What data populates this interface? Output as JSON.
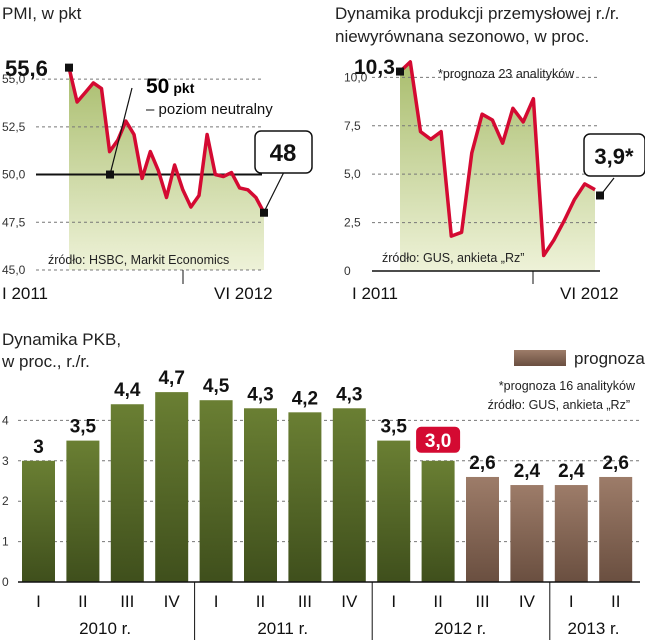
{
  "colors": {
    "line": "#d40a32",
    "bar_actual": "#5b6e2b",
    "bar_forecast": "#8a6a58",
    "highlight": "#d40a32"
  },
  "chart_data": [
    {
      "type": "area",
      "title": "PMI, w pkt",
      "ylim": [
        45.0,
        56.0
      ],
      "yticks": [
        "55,0",
        "52,5",
        "50,0",
        "47,5",
        "45,0"
      ],
      "ytick_values": [
        55,
        52.5,
        50,
        47.5,
        45
      ],
      "x_start_label": "I 2011",
      "x_end_label": "VI 2012",
      "values": [
        55.6,
        53.8,
        54.3,
        54.8,
        54.5,
        51.2,
        51.8,
        52.8,
        52.1,
        49.8,
        51.2,
        50.2,
        48.8,
        50.5,
        49.2,
        48.3,
        48.9,
        52.1,
        50.0,
        49.9,
        50.1,
        49.3,
        49.2,
        48.8,
        48.0
      ],
      "first_label": "55,6",
      "last_label": "48",
      "reference": {
        "value": 50,
        "label_value": "50",
        "label_unit": "pkt",
        "label_text": "– poziom neutralny"
      },
      "source": "źródło: HSBC, Markit Economics"
    },
    {
      "type": "area",
      "title": "Dynamika produkcji przemysłowej r./r.",
      "subtitle": "niewyrównana sezonowo, w proc.",
      "ylim": [
        0,
        11
      ],
      "yticks": [
        "10,0",
        "7,5",
        "5,0",
        "2,5",
        "0"
      ],
      "ytick_values": [
        10,
        7.5,
        5,
        2.5,
        0
      ],
      "x_start_label": "I 2011",
      "x_end_label": "VI 2012",
      "values": [
        10.3,
        10.8,
        7.2,
        6.8,
        7.2,
        1.8,
        2.0,
        6.1,
        8.1,
        7.8,
        6.6,
        8.4,
        7.7,
        8.9,
        0.8,
        1.6,
        2.6,
        3.7,
        4.5,
        4.2
      ],
      "first_label": "10,3",
      "last_label": "3,9*",
      "forecast_value": 3.9,
      "note": "*prognoza 23 analityków",
      "source": "źródło: GUS, ankieta „Rz”"
    },
    {
      "type": "bar",
      "title": "Dynamika PKB,",
      "subtitle": "w proc., r./r.",
      "ylim": [
        0,
        5
      ],
      "yticks": [
        "0",
        "1",
        "2",
        "3",
        "4"
      ],
      "ytick_values": [
        0,
        1,
        2,
        3,
        4
      ],
      "categories": [
        "I",
        "II",
        "III",
        "IV",
        "I",
        "II",
        "III",
        "IV",
        "I",
        "II",
        "III",
        "IV",
        "I",
        "II"
      ],
      "values": [
        3.0,
        3.5,
        4.4,
        4.7,
        4.5,
        4.3,
        4.2,
        4.3,
        3.5,
        3.0,
        2.6,
        2.4,
        2.4,
        2.6
      ],
      "labels": [
        "3",
        "3,5",
        "4,4",
        "4,7",
        "4,5",
        "4,3",
        "4,2",
        "4,3",
        "3,5",
        "3,0",
        "2,6",
        "2,4",
        "2,4",
        "2,6"
      ],
      "forecast": [
        false,
        false,
        false,
        false,
        false,
        false,
        false,
        false,
        false,
        false,
        true,
        true,
        true,
        true
      ],
      "highlight_index": 9,
      "years": [
        {
          "label": "2010 r.",
          "start": 0,
          "end": 3
        },
        {
          "label": "2011 r.",
          "start": 4,
          "end": 7
        },
        {
          "label": "2012 r.",
          "start": 8,
          "end": 11
        },
        {
          "label": "2013 r.",
          "start": 12,
          "end": 13
        }
      ],
      "legend": {
        "label": "prognoza"
      },
      "note": "*prognoza 16 analityków",
      "source": "źródło: GUS, ankieta „Rz”"
    }
  ]
}
